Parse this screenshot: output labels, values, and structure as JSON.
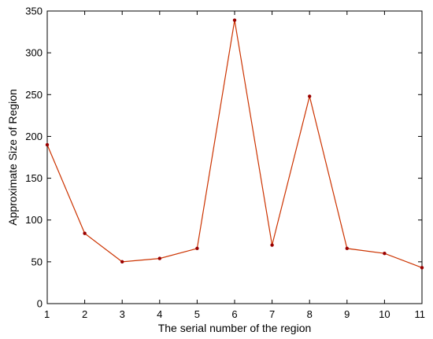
{
  "chart_data": {
    "type": "line",
    "title": "",
    "xlabel": "The serial number of the region",
    "ylabel": "Approximate Size of Region",
    "x": [
      1,
      2,
      3,
      4,
      5,
      6,
      7,
      8,
      9,
      10,
      11
    ],
    "xlim": [
      1,
      11
    ],
    "ylim": [
      0,
      350
    ],
    "xticks": [
      1,
      2,
      3,
      4,
      5,
      6,
      7,
      8,
      9,
      10,
      11
    ],
    "yticks": [
      0,
      50,
      100,
      150,
      200,
      250,
      300,
      350
    ],
    "grid": false,
    "series": [
      {
        "values": [
          190,
          84,
          50,
          54,
          66,
          339,
          70,
          248,
          66,
          60,
          43
        ],
        "color": "#cc3300",
        "marker_color": "#990000"
      }
    ]
  }
}
